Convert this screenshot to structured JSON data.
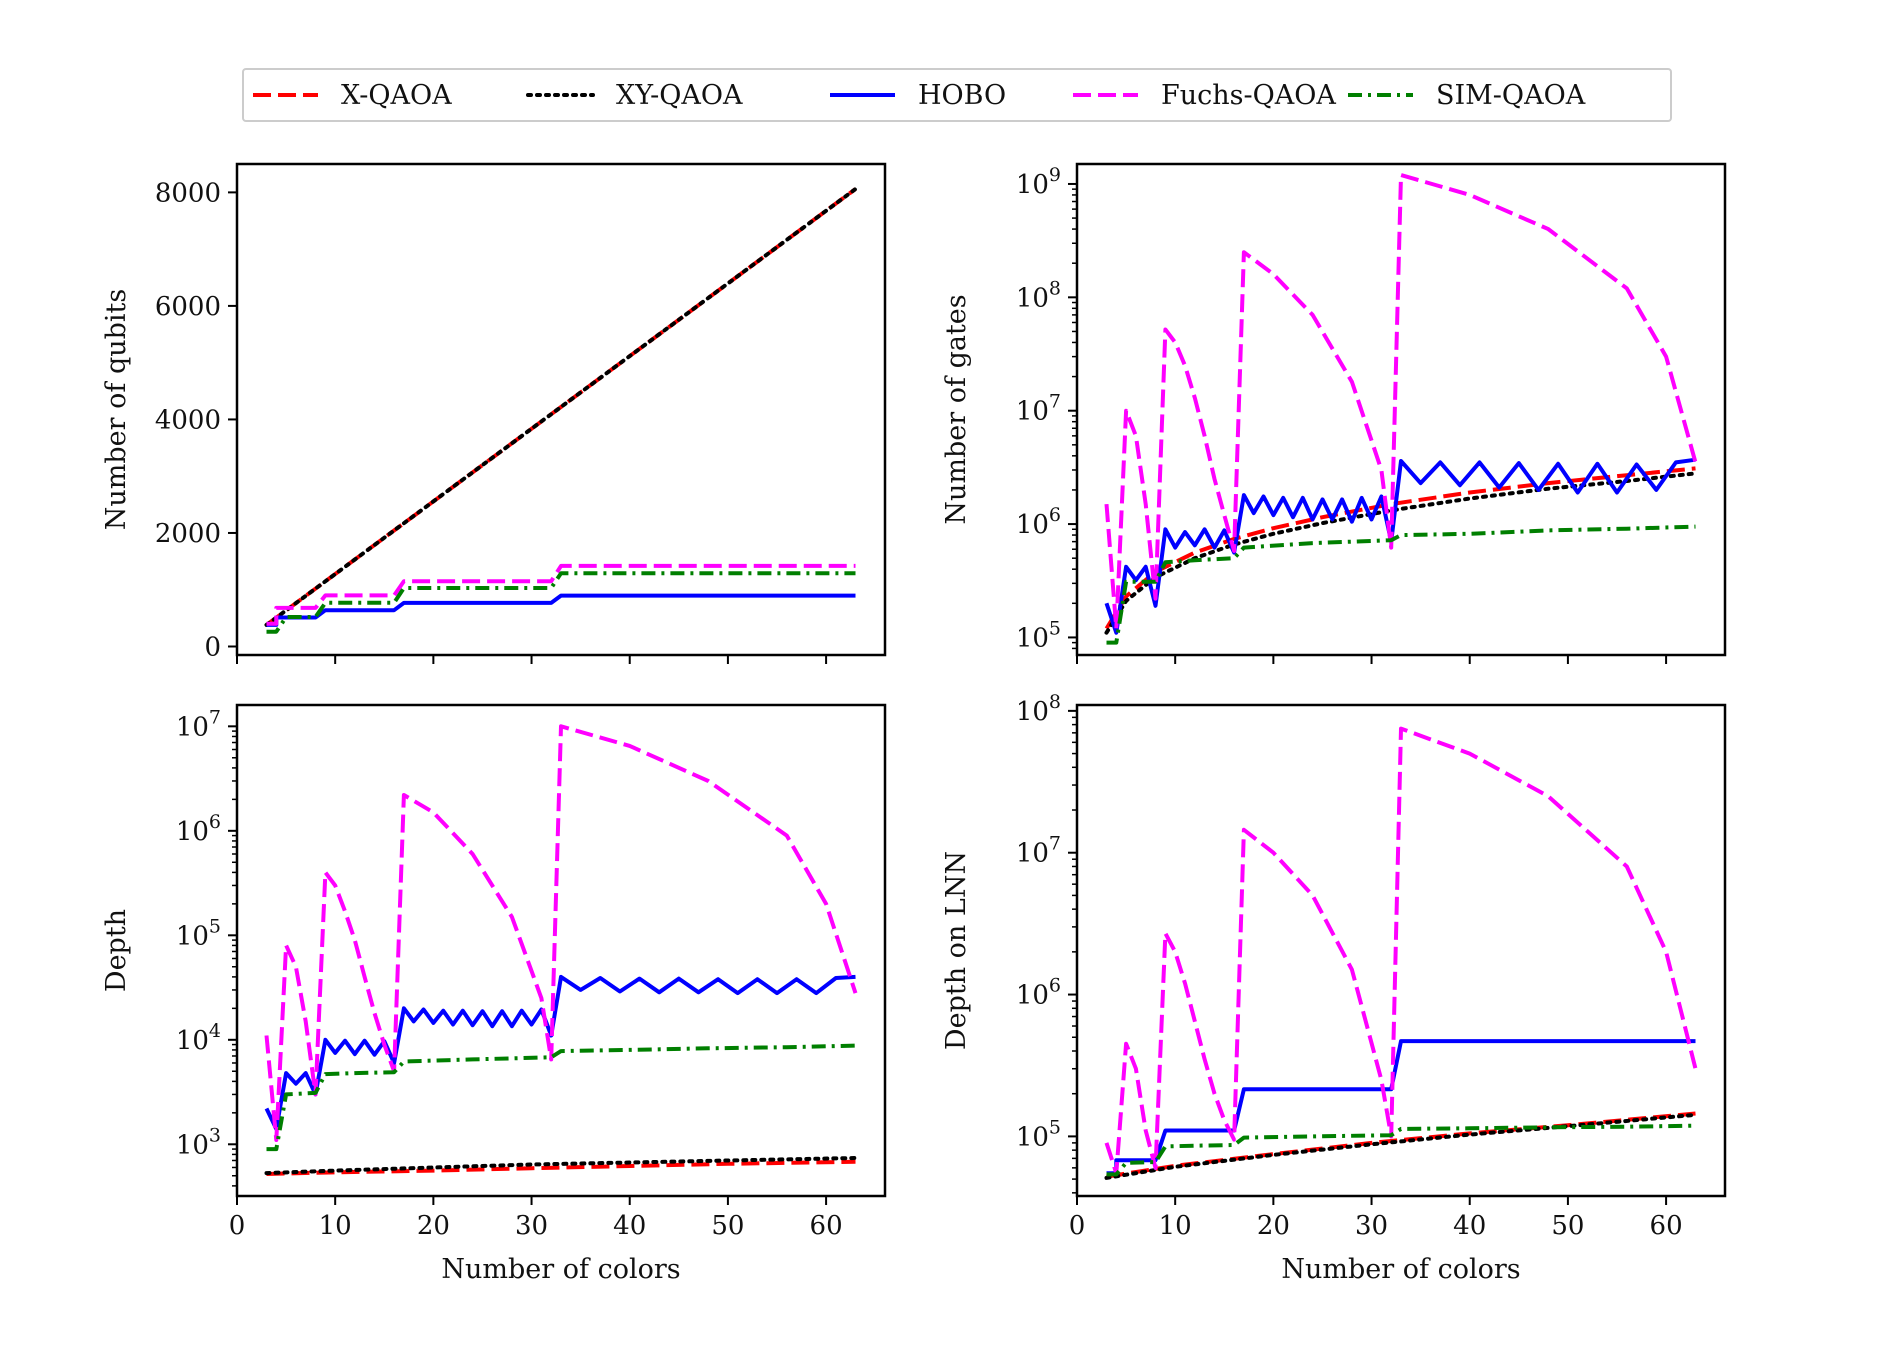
{
  "legend": {
    "placement": "top-center",
    "entries": [
      {
        "name": "X-QAOA",
        "color": "#ff0000",
        "dash": "dashed"
      },
      {
        "name": "XY-QAOA",
        "color": "#000000",
        "dash": "dotted"
      },
      {
        "name": "HOBO",
        "color": "#0000ff",
        "dash": "solid"
      },
      {
        "name": "Fuchs-QAOA",
        "color": "#ff00ff",
        "dash": "dashed"
      },
      {
        "name": "SIM-QAOA",
        "color": "#007f00",
        "dash": "dashdot"
      }
    ]
  },
  "chart_data": [
    {
      "type": "line",
      "title": "",
      "xlabel": "",
      "ylabel": "Number of qubits",
      "xlim": [
        0,
        66
      ],
      "ylim": [
        -150,
        8500
      ],
      "yscale": "linear",
      "xticks": [
        0,
        10,
        20,
        30,
        40,
        50,
        60
      ],
      "show_xticklabels": false,
      "yticks": [
        0,
        2000,
        4000,
        6000,
        8000
      ],
      "yticklabels": [
        "0",
        "2000",
        "4000",
        "6000",
        "8000"
      ],
      "series": [
        {
          "name": "X-QAOA",
          "x": [
            3,
            63
          ],
          "y": [
            380,
            8060
          ]
        },
        {
          "name": "XY-QAOA",
          "x": [
            3,
            63
          ],
          "y": [
            380,
            8060
          ]
        },
        {
          "name": "HOBO",
          "x": [
            3,
            4,
            4,
            8,
            9,
            16,
            17,
            32,
            33,
            63
          ],
          "y": [
            380,
            380,
            510,
            510,
            640,
            640,
            768,
            768,
            896,
            896
          ]
        },
        {
          "name": "Fuchs-QAOA",
          "x": [
            3,
            4,
            4,
            8,
            9,
            16,
            17,
            32,
            33,
            63
          ],
          "y": [
            400,
            400,
            680,
            680,
            900,
            900,
            1150,
            1150,
            1420,
            1420
          ]
        },
        {
          "name": "SIM-QAOA",
          "x": [
            3,
            4,
            5,
            8,
            9,
            16,
            17,
            32,
            33,
            63
          ],
          "y": [
            260,
            260,
            520,
            520,
            770,
            770,
            1030,
            1030,
            1290,
            1290
          ]
        }
      ]
    },
    {
      "type": "line",
      "title": "",
      "xlabel": "",
      "ylabel": "Number of gates",
      "xlim": [
        0,
        66
      ],
      "ylim": [
        70000,
        1500000000
      ],
      "yscale": "log",
      "xticks": [
        0,
        10,
        20,
        30,
        40,
        50,
        60
      ],
      "show_xticklabels": false,
      "yticks": [
        100000,
        1000000,
        10000000,
        100000000,
        1000000000
      ],
      "yticklabel_exponents": [
        "5",
        "6",
        "7",
        "8",
        "9"
      ],
      "series": [
        {
          "name": "X-QAOA",
          "x": [
            3,
            5,
            8,
            12,
            16,
            20,
            25,
            32,
            40,
            48,
            56,
            63
          ],
          "y": [
            120000,
            230000,
            380000,
            560000,
            740000,
            920000,
            1150000,
            1500000,
            1900000,
            2300000,
            2700000,
            3100000
          ]
        },
        {
          "name": "XY-QAOA",
          "x": [
            3,
            5,
            8,
            12,
            16,
            20,
            25,
            32,
            40,
            48,
            56,
            63
          ],
          "y": [
            110000,
            210000,
            340000,
            500000,
            660000,
            820000,
            1020000,
            1320000,
            1680000,
            2050000,
            2400000,
            2800000
          ]
        },
        {
          "name": "HOBO",
          "x": [
            3,
            4,
            5,
            6,
            7,
            8,
            9,
            10,
            11,
            12,
            13,
            14,
            15,
            16,
            17,
            18,
            19,
            20,
            21,
            22,
            23,
            24,
            25,
            26,
            27,
            28,
            29,
            30,
            31,
            32,
            33,
            35,
            37,
            39,
            41,
            43,
            45,
            47,
            49,
            51,
            53,
            55,
            57,
            59,
            61,
            63
          ],
          "y": [
            200000,
            110000,
            420000,
            320000,
            420000,
            190000,
            900000,
            620000,
            850000,
            650000,
            900000,
            620000,
            880000,
            560000,
            1800000,
            1250000,
            1750000,
            1200000,
            1700000,
            1150000,
            1700000,
            1100000,
            1650000,
            1100000,
            1650000,
            1050000,
            1700000,
            1100000,
            1750000,
            700000,
            3600000,
            2300000,
            3500000,
            2200000,
            3500000,
            2100000,
            3450000,
            2000000,
            3400000,
            1900000,
            3400000,
            1900000,
            3350000,
            2000000,
            3500000,
            3700000
          ]
        },
        {
          "name": "Fuchs-QAOA",
          "x": [
            3,
            4,
            5,
            6,
            7,
            8,
            9,
            10,
            11,
            12,
            13,
            14,
            15,
            16,
            17,
            20,
            24,
            28,
            31,
            32,
            33,
            40,
            48,
            56,
            60,
            63
          ],
          "y": [
            1500000,
            120000,
            10000000,
            6000000,
            1500000,
            220000,
            52000000,
            40000000,
            25000000,
            13000000,
            6000000,
            2500000,
            1200000,
            580000,
            250000000,
            160000000,
            70000000,
            18000000,
            3000000,
            620000,
            1200000000,
            800000000,
            400000000,
            120000000,
            30000000,
            3500000
          ]
        },
        {
          "name": "SIM-QAOA",
          "x": [
            3,
            4,
            5,
            8,
            9,
            12,
            16,
            17,
            24,
            32,
            33,
            40,
            48,
            56,
            63
          ],
          "y": [
            90000,
            90000,
            310000,
            310000,
            460000,
            480000,
            500000,
            620000,
            680000,
            720000,
            800000,
            820000,
            880000,
            910000,
            950000
          ]
        }
      ]
    },
    {
      "type": "line",
      "title": "",
      "xlabel": "Number of colors",
      "ylabel": "Depth",
      "xlim": [
        0,
        66
      ],
      "ylim": [
        320,
        16000000
      ],
      "yscale": "log",
      "xticks": [
        0,
        10,
        20,
        30,
        40,
        50,
        60
      ],
      "show_xticklabels": true,
      "xticklabels": [
        "0",
        "10",
        "20",
        "30",
        "40",
        "50",
        "60"
      ],
      "yticks": [
        1000,
        10000,
        100000,
        1000000,
        10000000
      ],
      "yticklabel_exponents": [
        "3",
        "4",
        "5",
        "6",
        "7"
      ],
      "series": [
        {
          "name": "X-QAOA",
          "x": [
            3,
            10,
            20,
            30,
            40,
            50,
            63
          ],
          "y": [
            520,
            540,
            560,
            590,
            620,
            650,
            680
          ]
        },
        {
          "name": "XY-QAOA",
          "x": [
            3,
            10,
            20,
            30,
            40,
            50,
            63
          ],
          "y": [
            530,
            560,
            600,
            640,
            670,
            700,
            740
          ]
        },
        {
          "name": "HOBO",
          "x": [
            3,
            4,
            5,
            6,
            7,
            8,
            9,
            10,
            11,
            12,
            13,
            14,
            15,
            16,
            17,
            18,
            19,
            20,
            21,
            22,
            23,
            24,
            25,
            26,
            27,
            28,
            29,
            30,
            31,
            32,
            33,
            35,
            37,
            39,
            41,
            43,
            45,
            47,
            49,
            51,
            53,
            55,
            57,
            59,
            61,
            63
          ],
          "y": [
            2200,
            1400,
            4800,
            3800,
            4800,
            3000,
            10000,
            7500,
            9800,
            7300,
            9800,
            7200,
            9700,
            6000,
            20000,
            15000,
            19500,
            14500,
            19000,
            14000,
            19000,
            13800,
            18800,
            13500,
            18800,
            13500,
            19000,
            14000,
            19500,
            11000,
            40000,
            30000,
            39000,
            29000,
            38500,
            28500,
            38500,
            28500,
            38000,
            28000,
            38000,
            28000,
            38000,
            28000,
            39000,
            40000
          ]
        },
        {
          "name": "Fuchs-QAOA",
          "x": [
            3,
            4,
            5,
            6,
            7,
            8,
            9,
            10,
            11,
            12,
            13,
            14,
            15,
            16,
            17,
            20,
            24,
            28,
            31,
            32,
            33,
            40,
            48,
            56,
            60,
            63
          ],
          "y": [
            11000,
            1100,
            80000,
            50000,
            15000,
            3000,
            400000,
            300000,
            170000,
            90000,
            40000,
            18000,
            9000,
            5000,
            2200000,
            1500000,
            600000,
            150000,
            25000,
            6500,
            10000000,
            6500000,
            3000000,
            900000,
            200000,
            28000
          ]
        },
        {
          "name": "SIM-QAOA",
          "x": [
            3,
            4,
            5,
            8,
            9,
            12,
            16,
            17,
            24,
            32,
            33,
            40,
            48,
            56,
            63
          ],
          "y": [
            900,
            900,
            3000,
            3100,
            4700,
            4800,
            4900,
            6200,
            6500,
            6800,
            7800,
            8000,
            8300,
            8500,
            8800
          ]
        }
      ]
    },
    {
      "type": "line",
      "title": "",
      "xlabel": "Number of colors",
      "ylabel": "Depth on LNN",
      "xlim": [
        0,
        66
      ],
      "ylim": [
        38000,
        110000000
      ],
      "yscale": "log",
      "xticks": [
        0,
        10,
        20,
        30,
        40,
        50,
        60
      ],
      "show_xticklabels": true,
      "xticklabels": [
        "0",
        "10",
        "20",
        "30",
        "40",
        "50",
        "60"
      ],
      "yticks": [
        100000,
        1000000,
        10000000,
        100000000
      ],
      "yticklabel_exponents": [
        "5",
        "6",
        "7",
        "8"
      ],
      "series": [
        {
          "name": "X-QAOA",
          "x": [
            3,
            10,
            20,
            30,
            40,
            50,
            63
          ],
          "y": [
            52000,
            62000,
            75000,
            90000,
            105000,
            120000,
            145000
          ]
        },
        {
          "name": "XY-QAOA",
          "x": [
            3,
            10,
            20,
            30,
            40,
            50,
            63
          ],
          "y": [
            51000,
            61000,
            74000,
            88000,
            103000,
            118000,
            142000
          ]
        },
        {
          "name": "HOBO",
          "x": [
            3,
            4,
            4,
            8,
            9,
            16,
            17,
            32,
            33,
            63
          ],
          "y": [
            55000,
            55000,
            68000,
            68000,
            110000,
            110000,
            215000,
            215000,
            470000,
            470000
          ]
        },
        {
          "name": "Fuchs-QAOA",
          "x": [
            3,
            4,
            5,
            6,
            7,
            8,
            9,
            10,
            11,
            12,
            13,
            14,
            15,
            16,
            17,
            20,
            24,
            28,
            31,
            32,
            33,
            40,
            48,
            56,
            60,
            63
          ],
          "y": [
            90000,
            55000,
            450000,
            300000,
            110000,
            60000,
            2700000,
            2000000,
            1200000,
            650000,
            350000,
            200000,
            130000,
            95000,
            14500000,
            10000000,
            5000000,
            1500000,
            250000,
            100000,
            75000000,
            50000000,
            25000000,
            8000000,
            2000000,
            300000
          ]
        },
        {
          "name": "SIM-QAOA",
          "x": [
            3,
            4,
            5,
            8,
            9,
            12,
            16,
            17,
            24,
            32,
            33,
            40,
            48,
            56,
            63
          ],
          "y": [
            54000,
            54000,
            65000,
            66000,
            85000,
            86000,
            87000,
            98000,
            100000,
            102000,
            113000,
            114000,
            116000,
            117000,
            119000
          ]
        }
      ]
    }
  ]
}
